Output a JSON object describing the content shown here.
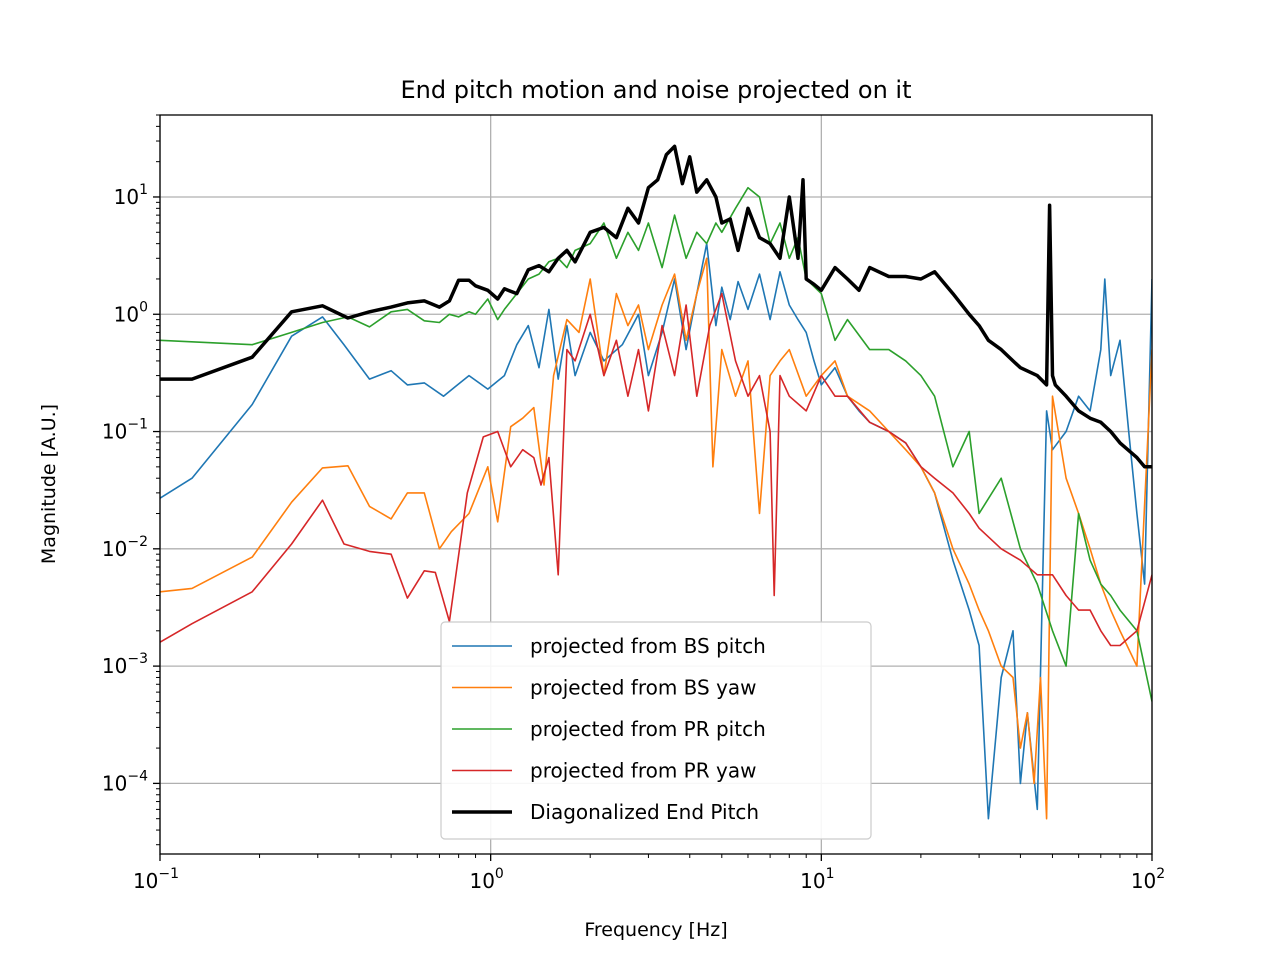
{
  "chart_data": {
    "type": "line",
    "title": "End pitch motion and noise projected on it",
    "xlabel": "Frequency [Hz]",
    "ylabel": "Magnitude [A.U.]",
    "xscale": "log",
    "yscale": "log",
    "xlim": [
      0.1,
      100
    ],
    "ylim": [
      2.5e-05,
      50
    ],
    "grid": true,
    "legend_position": "lower-center",
    "x_ticks": [
      {
        "base": "10",
        "exp": "−1"
      },
      {
        "base": "10",
        "exp": "0"
      },
      {
        "base": "10",
        "exp": "1"
      },
      {
        "base": "10",
        "exp": "2"
      }
    ],
    "y_ticks": [
      {
        "base": "10",
        "exp": "1"
      },
      {
        "base": "10",
        "exp": "0"
      },
      {
        "base": "10",
        "exp": "−1"
      },
      {
        "base": "10",
        "exp": "−2"
      },
      {
        "base": "10",
        "exp": "−3"
      },
      {
        "base": "10",
        "exp": "−4"
      }
    ],
    "series": [
      {
        "name": "projected from BS pitch",
        "color": "#1f77b4",
        "width": 1.6,
        "x": [
          0.1,
          0.125,
          0.19,
          0.25,
          0.31,
          0.36,
          0.43,
          0.5,
          0.56,
          0.63,
          0.72,
          0.78,
          0.86,
          0.98,
          1.1,
          1.2,
          1.3,
          1.4,
          1.5,
          1.6,
          1.7,
          1.8,
          2.0,
          2.2,
          2.5,
          2.8,
          3.0,
          3.3,
          3.6,
          3.9,
          4.2,
          4.5,
          4.8,
          5.0,
          5.3,
          5.6,
          6.0,
          6.5,
          7.0,
          7.5,
          8.0,
          8.5,
          9.0,
          9.5,
          10,
          11,
          12,
          13,
          14,
          16,
          18,
          20,
          22,
          25,
          28,
          30,
          32,
          35,
          38,
          40,
          42,
          45,
          48,
          50,
          55,
          60,
          65,
          70,
          72,
          75,
          80,
          85,
          90,
          95,
          100
        ],
        "y": [
          0.027,
          0.04,
          0.17,
          0.65,
          0.95,
          0.55,
          0.28,
          0.33,
          0.25,
          0.26,
          0.2,
          0.24,
          0.3,
          0.23,
          0.3,
          0.55,
          0.8,
          0.35,
          1.1,
          0.28,
          0.8,
          0.3,
          0.7,
          0.4,
          0.55,
          1.0,
          0.3,
          0.7,
          2.0,
          0.5,
          1.5,
          4.0,
          0.8,
          1.7,
          0.9,
          1.9,
          1.1,
          2.2,
          0.9,
          2.3,
          1.2,
          0.9,
          0.7,
          0.4,
          0.25,
          0.35,
          0.2,
          0.15,
          0.12,
          0.1,
          0.08,
          0.05,
          0.03,
          0.008,
          0.003,
          0.0015,
          5e-05,
          0.0008,
          0.002,
          0.0001,
          0.0004,
          6e-05,
          0.15,
          0.07,
          0.1,
          0.2,
          0.15,
          0.5,
          2.0,
          0.3,
          0.6,
          0.1,
          0.02,
          0.005,
          2.0
        ]
      },
      {
        "name": "projected from BS yaw",
        "color": "#ff7f0e",
        "width": 1.6,
        "x": [
          0.1,
          0.125,
          0.19,
          0.25,
          0.31,
          0.37,
          0.43,
          0.5,
          0.56,
          0.63,
          0.7,
          0.76,
          0.86,
          0.98,
          1.05,
          1.15,
          1.25,
          1.35,
          1.45,
          1.55,
          1.7,
          1.85,
          2.0,
          2.2,
          2.4,
          2.6,
          2.8,
          3.0,
          3.3,
          3.6,
          3.9,
          4.2,
          4.5,
          4.7,
          5.0,
          5.5,
          6.0,
          6.5,
          7.0,
          7.5,
          8.0,
          9.0,
          10,
          11,
          12,
          14,
          16,
          18,
          20,
          22,
          25,
          28,
          30,
          32,
          35,
          38,
          40,
          42,
          44,
          46,
          48,
          50,
          55,
          60,
          65,
          70,
          75,
          80,
          90,
          100
        ],
        "y": [
          0.0043,
          0.0046,
          0.0085,
          0.025,
          0.049,
          0.051,
          0.023,
          0.018,
          0.03,
          0.03,
          0.01,
          0.014,
          0.02,
          0.05,
          0.017,
          0.11,
          0.13,
          0.16,
          0.035,
          0.3,
          0.9,
          0.7,
          2.0,
          0.3,
          1.5,
          0.8,
          1.2,
          0.5,
          1.2,
          2.2,
          0.6,
          1.5,
          3.0,
          0.05,
          0.5,
          0.2,
          0.4,
          0.02,
          0.3,
          0.4,
          0.5,
          0.2,
          0.3,
          0.4,
          0.2,
          0.15,
          0.1,
          0.07,
          0.05,
          0.03,
          0.01,
          0.005,
          0.003,
          0.002,
          0.001,
          0.0008,
          0.0002,
          0.0004,
          0.0001,
          0.0008,
          5e-05,
          0.2,
          0.04,
          0.02,
          0.01,
          0.005,
          0.003,
          0.002,
          0.001,
          0.5
        ]
      },
      {
        "name": "projected from PR pitch",
        "color": "#2ca02c",
        "width": 1.6,
        "x": [
          0.1,
          0.19,
          0.25,
          0.31,
          0.37,
          0.43,
          0.5,
          0.56,
          0.63,
          0.7,
          0.75,
          0.8,
          0.86,
          0.9,
          0.98,
          1.05,
          1.1,
          1.2,
          1.3,
          1.4,
          1.5,
          1.6,
          1.7,
          1.8,
          2.0,
          2.2,
          2.4,
          2.6,
          2.8,
          3.0,
          3.3,
          3.6,
          3.9,
          4.2,
          4.5,
          4.8,
          5.0,
          5.5,
          6.0,
          6.5,
          7.0,
          7.5,
          8.0,
          8.5,
          9.0,
          10,
          11,
          12,
          14,
          16,
          18,
          20,
          22,
          25,
          28,
          30,
          35,
          40,
          45,
          50,
          55,
          60,
          65,
          70,
          75,
          80,
          90,
          100
        ],
        "y": [
          0.6,
          0.55,
          0.7,
          0.85,
          0.95,
          0.78,
          1.05,
          1.1,
          0.88,
          0.85,
          1.0,
          0.95,
          1.05,
          1.0,
          1.35,
          0.9,
          1.1,
          1.5,
          2.0,
          2.2,
          2.8,
          3.0,
          2.5,
          3.5,
          4.0,
          6.0,
          3.0,
          5.0,
          3.5,
          6.0,
          2.5,
          7.0,
          3.0,
          5.0,
          4.0,
          6.0,
          5.0,
          8.0,
          12.0,
          10.0,
          4.0,
          6.0,
          3.0,
          4.5,
          2.0,
          1.5,
          0.6,
          0.9,
          0.5,
          0.5,
          0.4,
          0.3,
          0.2,
          0.05,
          0.1,
          0.02,
          0.04,
          0.01,
          0.005,
          0.002,
          0.001,
          0.02,
          0.008,
          0.005,
          0.004,
          0.003,
          0.002,
          0.0005
        ]
      },
      {
        "name": "projected from PR yaw",
        "color": "#d62728",
        "width": 1.6,
        "x": [
          0.1,
          0.125,
          0.19,
          0.25,
          0.31,
          0.36,
          0.43,
          0.5,
          0.56,
          0.63,
          0.68,
          0.75,
          0.85,
          0.95,
          1.05,
          1.15,
          1.25,
          1.35,
          1.42,
          1.5,
          1.6,
          1.7,
          1.8,
          2.0,
          2.2,
          2.4,
          2.6,
          2.8,
          3.0,
          3.3,
          3.6,
          3.9,
          4.2,
          4.6,
          5.0,
          5.5,
          6.0,
          6.5,
          7.0,
          7.2,
          7.5,
          8.0,
          9.0,
          10,
          11,
          12,
          14,
          16,
          18,
          20,
          22,
          25,
          28,
          30,
          35,
          40,
          45,
          50,
          55,
          60,
          65,
          70,
          75,
          80,
          90,
          100
        ],
        "y": [
          0.0016,
          0.0023,
          0.0043,
          0.011,
          0.026,
          0.011,
          0.0095,
          0.009,
          0.0038,
          0.0065,
          0.0063,
          0.0024,
          0.03,
          0.09,
          0.1,
          0.05,
          0.07,
          0.06,
          0.035,
          0.06,
          0.006,
          0.5,
          0.4,
          1.0,
          0.3,
          0.6,
          0.2,
          0.5,
          0.15,
          0.8,
          0.3,
          1.2,
          0.2,
          0.8,
          1.5,
          0.4,
          0.2,
          0.3,
          0.1,
          0.004,
          0.3,
          0.2,
          0.15,
          0.3,
          0.2,
          0.2,
          0.12,
          0.1,
          0.08,
          0.05,
          0.04,
          0.03,
          0.02,
          0.015,
          0.01,
          0.008,
          0.006,
          0.006,
          0.004,
          0.003,
          0.003,
          0.002,
          0.0015,
          0.0015,
          0.002,
          0.006
        ]
      },
      {
        "name": "Diagonalized End Pitch",
        "color": "#000000",
        "width": 3.5,
        "x": [
          0.1,
          0.125,
          0.19,
          0.25,
          0.31,
          0.37,
          0.43,
          0.5,
          0.56,
          0.63,
          0.7,
          0.75,
          0.8,
          0.86,
          0.9,
          0.98,
          1.05,
          1.1,
          1.2,
          1.3,
          1.4,
          1.5,
          1.6,
          1.7,
          1.8,
          2.0,
          2.2,
          2.4,
          2.6,
          2.8,
          3.0,
          3.2,
          3.4,
          3.6,
          3.8,
          4.0,
          4.2,
          4.5,
          4.8,
          5.0,
          5.3,
          5.6,
          6.0,
          6.5,
          7.0,
          7.5,
          8.0,
          8.5,
          8.8,
          9.0,
          9.5,
          10,
          11,
          12,
          13,
          14,
          16,
          18,
          20,
          22,
          25,
          28,
          30,
          32,
          35,
          38,
          40,
          45,
          48,
          49,
          50,
          51,
          55,
          60,
          65,
          70,
          75,
          80,
          90,
          95,
          100
        ],
        "y": [
          0.28,
          0.28,
          0.43,
          1.05,
          1.18,
          0.93,
          1.05,
          1.15,
          1.25,
          1.3,
          1.15,
          1.3,
          1.95,
          1.95,
          1.75,
          1.6,
          1.35,
          1.65,
          1.5,
          2.4,
          2.6,
          2.3,
          3.0,
          3.5,
          2.8,
          5.0,
          5.5,
          4.5,
          8.0,
          6.0,
          12.0,
          14.0,
          23.0,
          27.0,
          13.0,
          22.0,
          11.0,
          14.0,
          10.0,
          6.0,
          6.5,
          3.5,
          8.0,
          4.5,
          4.0,
          3.0,
          10.0,
          3.0,
          14.0,
          2.0,
          1.8,
          1.6,
          2.5,
          2.0,
          1.6,
          2.5,
          2.1,
          2.1,
          2.0,
          2.3,
          1.5,
          1.0,
          0.8,
          0.6,
          0.5,
          0.4,
          0.35,
          0.3,
          0.25,
          8.5,
          0.3,
          0.25,
          0.2,
          0.15,
          0.13,
          0.12,
          0.1,
          0.08,
          0.06,
          0.05,
          0.05
        ]
      }
    ]
  }
}
